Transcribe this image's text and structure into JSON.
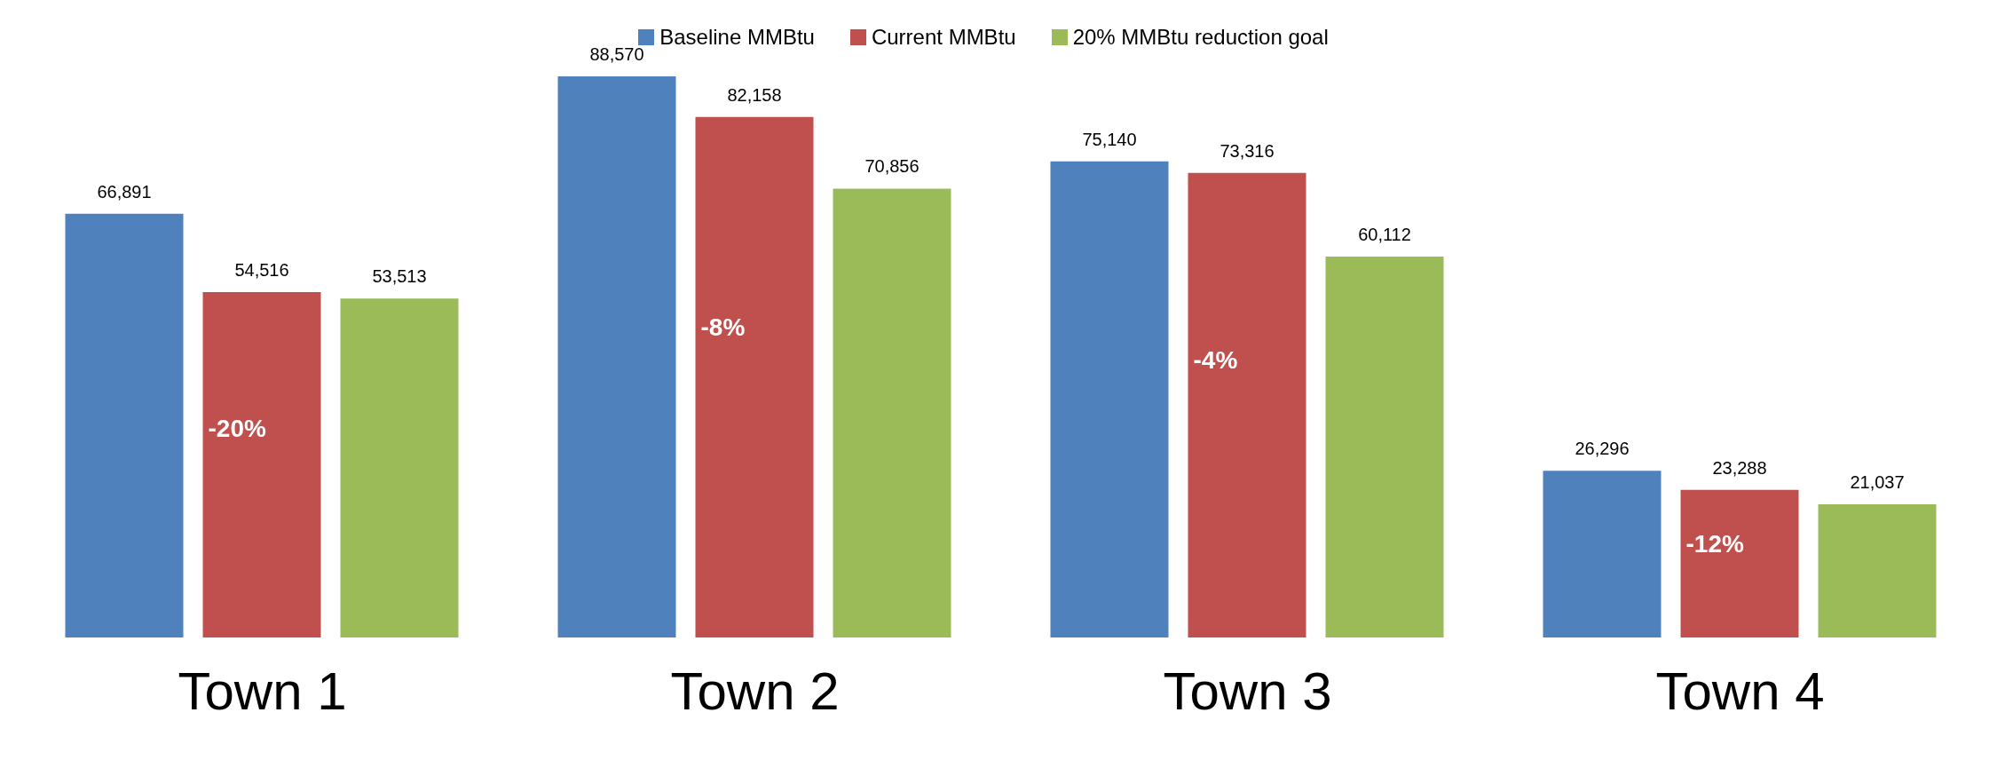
{
  "chart_data": {
    "type": "bar",
    "categories": [
      "Town 1",
      "Town 2",
      "Town 3",
      "Town 4"
    ],
    "series": [
      {
        "name": "Baseline MMBtu",
        "color": "#4f81bd",
        "values": [
          66891,
          88570,
          75140,
          26296
        ],
        "value_labels": [
          "66,891",
          "88,570",
          "75,140",
          "26,296"
        ]
      },
      {
        "name": "Current MMBtu",
        "color": "#c0504d",
        "values": [
          54516,
          82158,
          73316,
          23288
        ],
        "value_labels": [
          "54,516",
          "82,158",
          "73,316",
          "23,288"
        ]
      },
      {
        "name": "20% MMBtu reduction goal",
        "color": "#9bbb59",
        "values": [
          53513,
          70856,
          60112,
          21037
        ],
        "value_labels": [
          "53,513",
          "70,856",
          "60,112",
          "21,037"
        ]
      }
    ],
    "annotations": [
      "-20%",
      "-8%",
      "-4%",
      "-12%"
    ],
    "legend": "top",
    "grid": false
  }
}
